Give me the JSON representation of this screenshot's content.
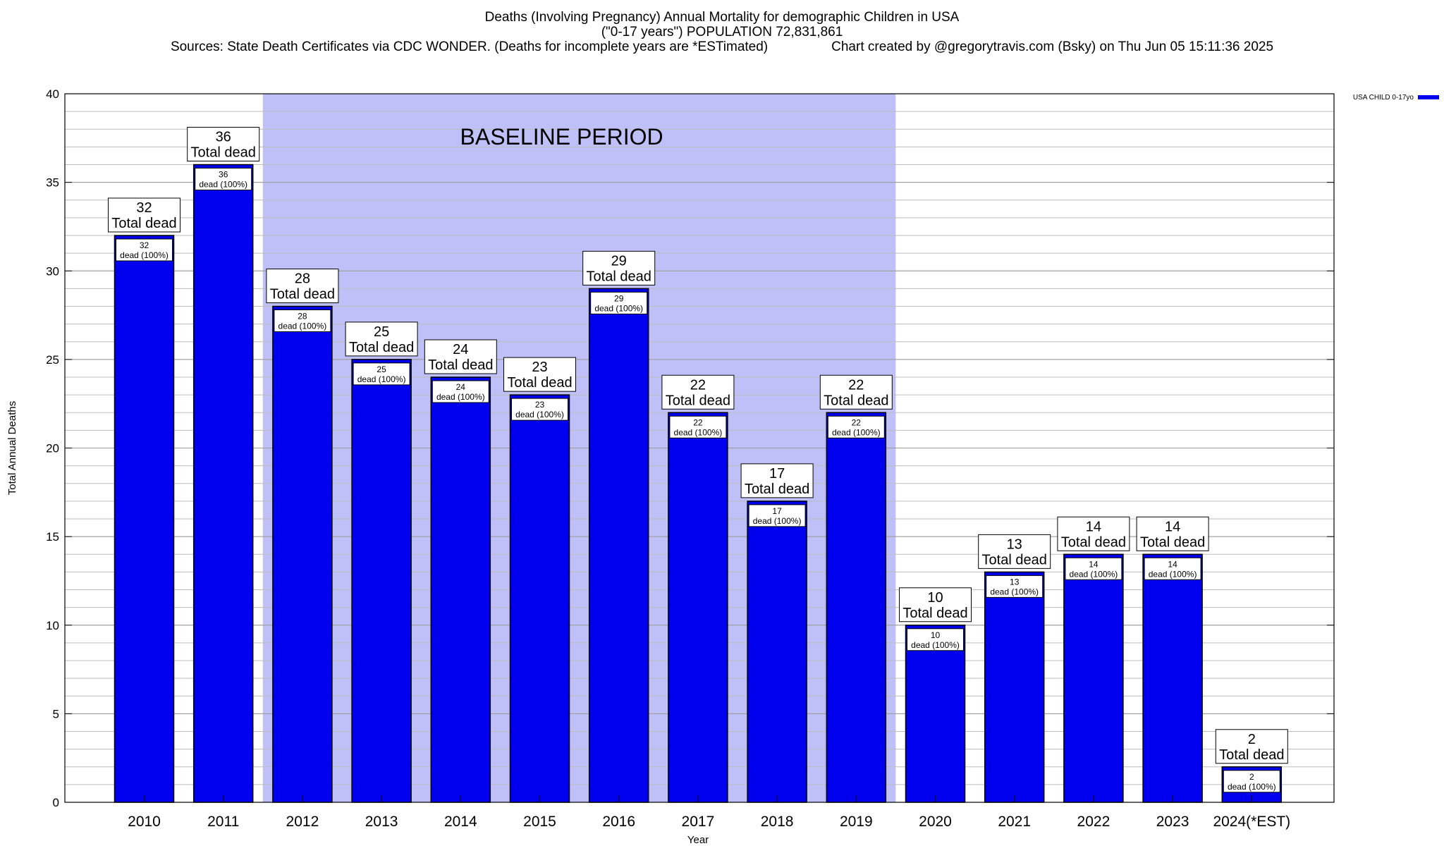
{
  "header": {
    "title_line1": "Deaths (Involving Pregnancy) Annual Mortality for demographic Children in USA",
    "title_line2": "(\"0-17 years\") POPULATION 72,831,861",
    "sources": "Sources: State Death Certificates via CDC WONDER. (Deaths for incomplete years are *ESTimated)",
    "credit": "Chart created by @gregorytravis.com (Bsky) on Thu Jun 05 15:11:36 2025"
  },
  "chart_data": {
    "type": "bar",
    "title": "Deaths (Involving Pregnancy) Annual Mortality for demographic Children in USA",
    "xlabel": "Year",
    "ylabel": "Total Annual Deaths",
    "ylim": [
      0,
      40
    ],
    "yticks": [
      0,
      5,
      10,
      15,
      20,
      25,
      30,
      35,
      40
    ],
    "minor_grid_step": 1,
    "grid": true,
    "legend_position": "top-right",
    "bar_color": "#0000ee",
    "baseline_color": "#c0c0f8",
    "categories": [
      "2010",
      "2011",
      "2012",
      "2013",
      "2014",
      "2015",
      "2016",
      "2017",
      "2018",
      "2019",
      "2020",
      "2021",
      "2022",
      "2023",
      "2024(*EST)"
    ],
    "series": [
      {
        "name": "USA CHILD 0-17yo",
        "values": [
          32,
          36,
          28,
          25,
          24,
          23,
          29,
          22,
          17,
          22,
          10,
          13,
          14,
          14,
          2
        ]
      }
    ],
    "total_label_suffix": "Total dead",
    "inner_label_suffix": "dead (100%)",
    "baseline_period": {
      "label": "BASELINE PERIOD",
      "start": "2012",
      "end": "2019"
    }
  }
}
